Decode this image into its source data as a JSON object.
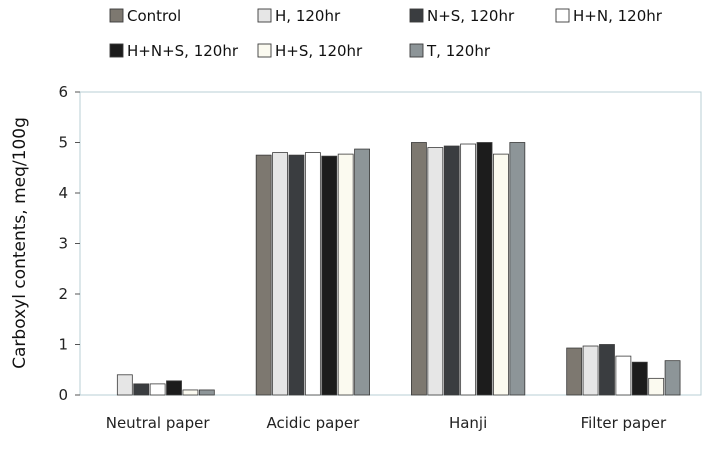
{
  "chart_data": {
    "type": "bar",
    "title": "",
    "xlabel": "",
    "ylabel": "Carboxyl contents, meq/100g",
    "ylim": [
      0,
      6
    ],
    "yticks": [
      0,
      1,
      2,
      3,
      4,
      5,
      6
    ],
    "grid": false,
    "legend_position": "top",
    "categories": [
      "Neutral paper",
      "Acidic paper",
      "Hanji",
      "Filter paper"
    ],
    "series": [
      {
        "name": "Control",
        "color": "#7d7870",
        "values": [
          0.0,
          4.75,
          5.0,
          0.93
        ]
      },
      {
        "name": "H, 120hr",
        "color": "#e6e6e6",
        "values": [
          0.4,
          4.8,
          4.9,
          0.97
        ]
      },
      {
        "name": "N+S, 120hr",
        "color": "#3a3d40",
        "values": [
          0.22,
          4.75,
          4.93,
          1.0
        ]
      },
      {
        "name": "H+N, 120hr",
        "color": "#ffffff",
        "values": [
          0.22,
          4.8,
          4.97,
          0.77
        ]
      },
      {
        "name": "H+N+S, 120hr",
        "color": "#1c1c1c",
        "values": [
          0.28,
          4.73,
          5.0,
          0.65
        ]
      },
      {
        "name": "H+S, 120hr",
        "color": "#fbfaf0",
        "values": [
          0.1,
          4.77,
          4.77,
          0.33
        ]
      },
      {
        "name": "T, 120hr",
        "color": "#8d9598",
        "values": [
          0.1,
          4.87,
          5.0,
          0.68
        ]
      }
    ]
  }
}
